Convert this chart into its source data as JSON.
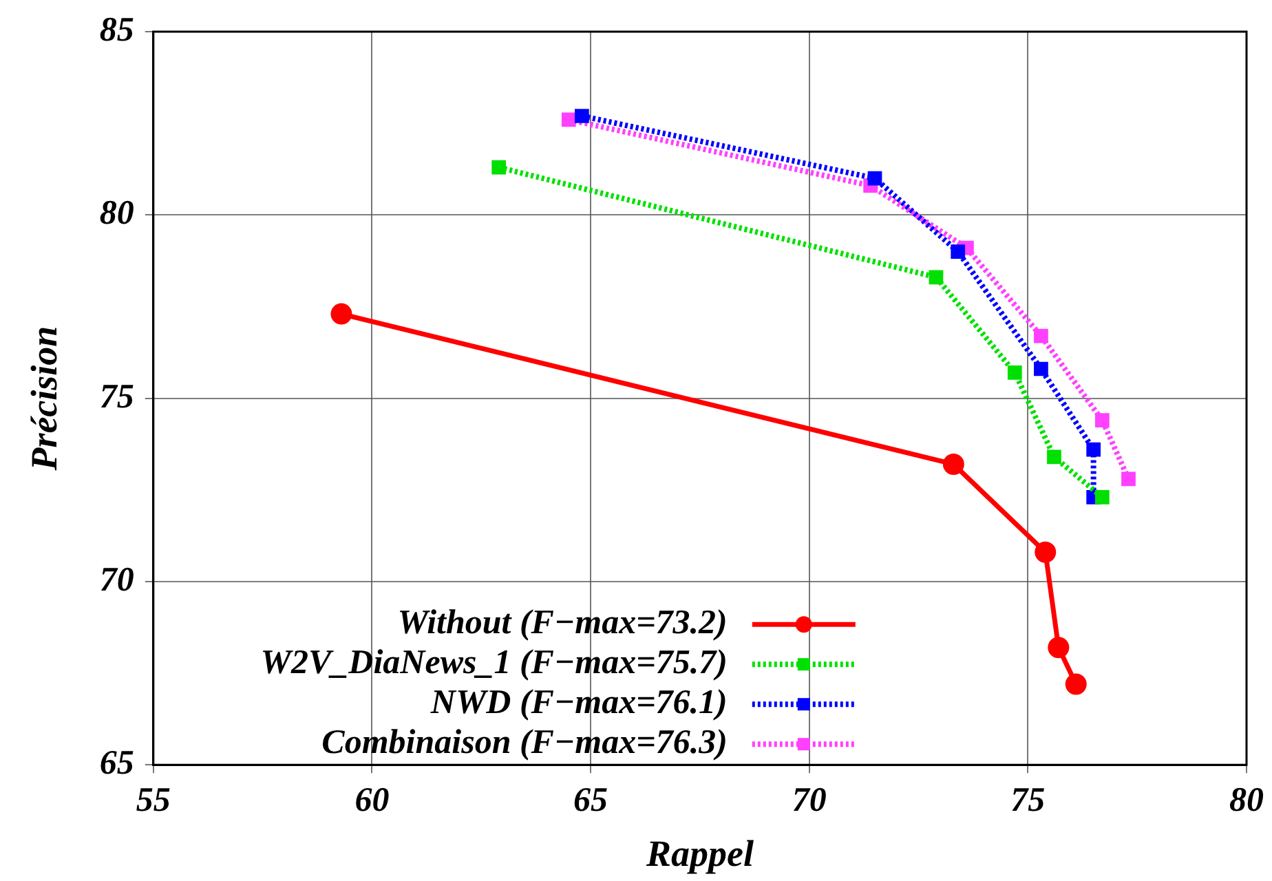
{
  "chart_data": {
    "type": "line",
    "xlabel": "Rappel",
    "ylabel": "Précision",
    "xlim": [
      55,
      80
    ],
    "xticks": [
      55,
      60,
      65,
      70,
      75,
      80
    ],
    "ylim": [
      65,
      85
    ],
    "yticks": [
      65,
      70,
      75,
      80,
      85
    ],
    "grid": true,
    "legend": "bottom left",
    "series": [
      {
        "name": "Without (F−max=73.2)",
        "color": "#ff0000",
        "marker": "circle",
        "line_style": "solid",
        "x": [
          59.3,
          73.3,
          75.4,
          75.7,
          76.1
        ],
        "values": [
          77.3,
          73.2,
          70.8,
          68.2,
          67.2
        ]
      },
      {
        "name": "W2V_DiaNews_1 (F−max=75.7)",
        "color": "#00e000",
        "marker": "square",
        "line_style": "dotted",
        "x": [
          62.9,
          72.9,
          74.7,
          75.6,
          76.7
        ],
        "values": [
          81.3,
          78.3,
          75.7,
          73.4,
          72.3
        ]
      },
      {
        "name": "NWD (F−max=76.1)",
        "color": "#0000ff",
        "marker": "square",
        "line_style": "dotted",
        "x": [
          64.8,
          71.5,
          73.4,
          75.3,
          76.5,
          76.5
        ],
        "values": [
          82.7,
          81.0,
          79.0,
          75.8,
          73.6,
          72.3
        ]
      },
      {
        "name": "Combinaison (F−max=76.3)",
        "color": "#ff40ff",
        "marker": "square",
        "line_style": "dotted",
        "x": [
          64.5,
          71.4,
          73.6,
          75.3,
          76.7,
          77.3
        ],
        "values": [
          82.6,
          80.8,
          79.1,
          76.7,
          74.4,
          72.8
        ]
      }
    ]
  }
}
